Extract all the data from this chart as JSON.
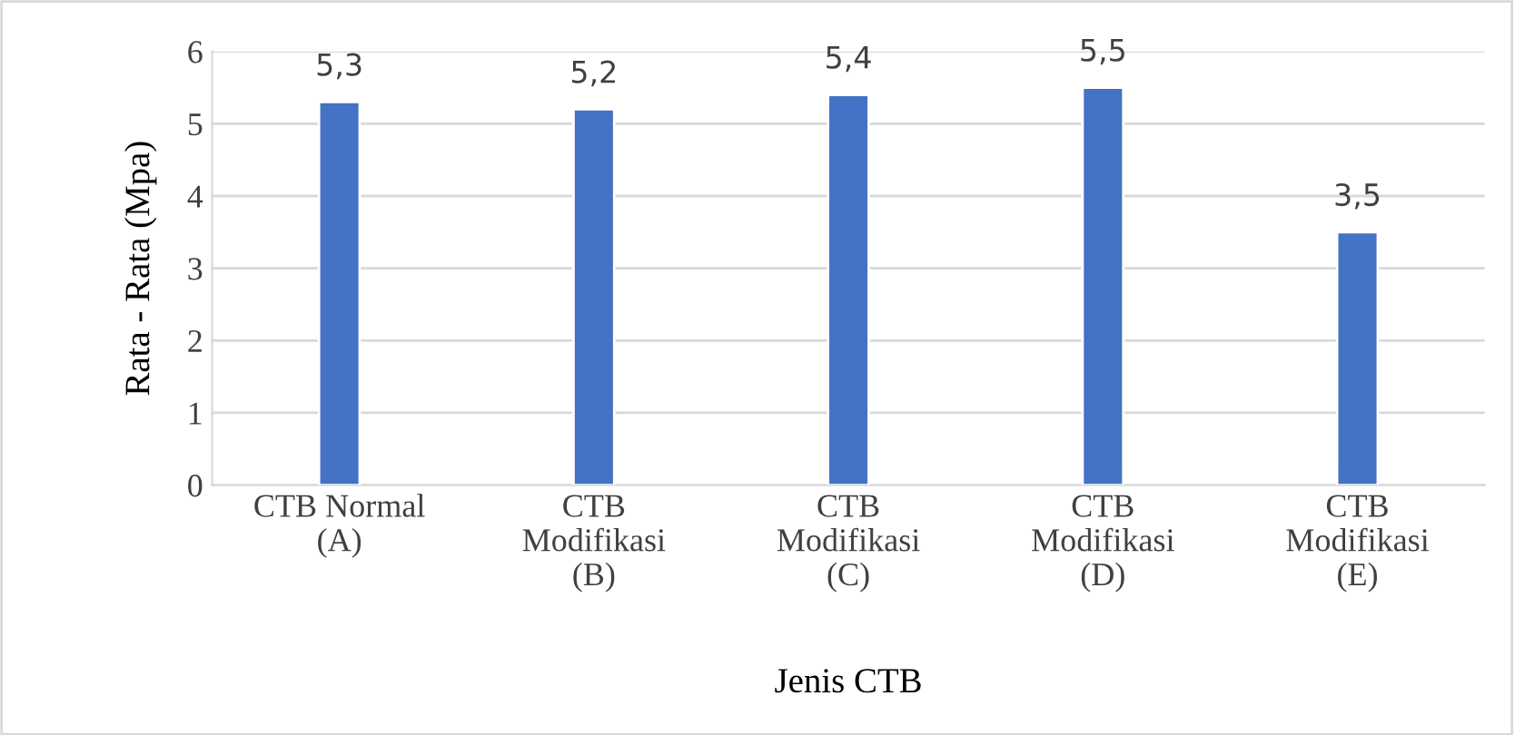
{
  "chart_data": {
    "type": "bar",
    "categories": [
      "CTB Normal\n(A)",
      "CTB\nModifikasi\n(B)",
      "CTB\nModifikasi\n(C)",
      "CTB\nModifikasi\n(D)",
      "CTB\nModifikasi\n(E)"
    ],
    "values": [
      5.3,
      5.2,
      5.4,
      5.5,
      3.5
    ],
    "value_labels": [
      "5,3",
      "5,2",
      "5,4",
      "5,5",
      "3,5"
    ],
    "color": "#4472c4",
    "xlabel": "Jenis CTB",
    "ylabel": "Rata - Rata (Mpa)",
    "ylim": [
      0,
      6
    ],
    "yticks": [
      0,
      1,
      2,
      3,
      4,
      5,
      6
    ],
    "grid": "y",
    "legend": false
  }
}
